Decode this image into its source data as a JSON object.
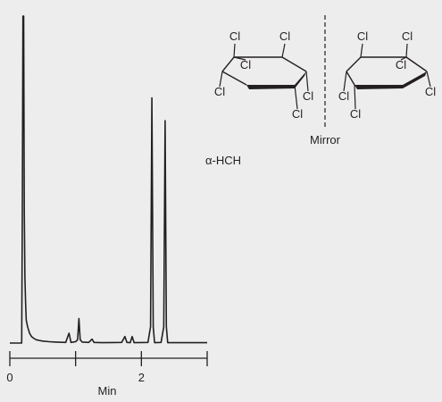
{
  "chart_data": {
    "type": "line",
    "title": "",
    "xlabel": "Min",
    "ylabel": "",
    "xlim": [
      0,
      3
    ],
    "x_ticks": [
      0,
      1,
      2,
      3
    ],
    "x_tick_labels": [
      "0",
      "",
      "2",
      ""
    ],
    "grid": false,
    "series": [
      {
        "x": [
          0,
          0.18,
          0.19,
          0.2,
          0.21,
          0.22,
          0.23,
          0.24,
          0.25,
          0.27,
          0.3,
          0.33,
          0.36,
          0.4,
          0.45,
          0.5,
          0.6,
          0.7,
          0.85,
          0.9,
          0.93,
          1.0,
          1.03,
          1.05,
          1.07,
          1.1,
          1.2,
          1.25,
          1.28,
          1.4,
          1.7,
          1.75,
          1.78,
          1.83,
          1.86,
          1.89,
          2.1,
          2.14,
          2.16,
          2.18,
          2.2,
          2.3,
          2.34,
          2.36,
          2.38,
          2.4,
          2.5,
          3.0
        ],
        "y": [
          0.0,
          0.0,
          0.4,
          1.0,
          1.0,
          0.4,
          0.2,
          0.12,
          0.07,
          0.05,
          0.03,
          0.02,
          0.015,
          0.01,
          0.008,
          0.006,
          0.004,
          0.003,
          0.002,
          0.03,
          0.002,
          0.004,
          0.01,
          0.075,
          0.01,
          0.003,
          0.002,
          0.012,
          0.002,
          0.001,
          0.002,
          0.02,
          0.002,
          0.001,
          0.02,
          0.001,
          0.002,
          0.05,
          0.75,
          0.05,
          0.001,
          0.002,
          0.05,
          0.68,
          0.05,
          0.001,
          0.001,
          0.001
        ]
      }
    ],
    "annotations": {
      "compound": "α-HCH",
      "mirror": "Mirror",
      "atom": "Cl"
    }
  }
}
